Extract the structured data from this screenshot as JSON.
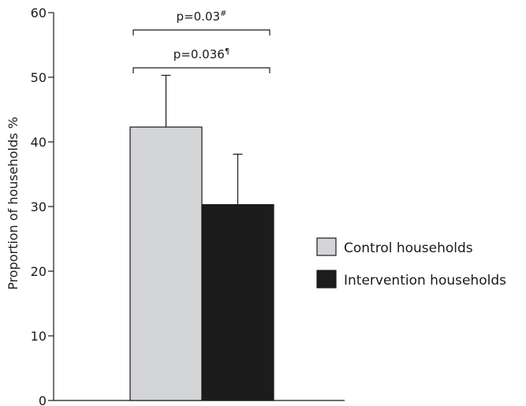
{
  "chart_data": {
    "type": "bar",
    "title": "",
    "xlabel": "",
    "ylabel": "Proportion of households %",
    "ylim": [
      0,
      60
    ],
    "yticks": [
      0,
      10,
      20,
      30,
      40,
      50,
      60
    ],
    "grid": false,
    "legend_position": "right",
    "series": [
      {
        "name": "Control households",
        "value": 42.3,
        "error_upper": 50.3,
        "color": "#d4d5d7"
      },
      {
        "name": "Intervention households",
        "value": 30.3,
        "error_upper": 38.1,
        "color": "#1c1c1c"
      }
    ],
    "annotations": [
      {
        "text": "p=0.03",
        "superscript": "#"
      },
      {
        "text": "p=0.036",
        "superscript": "¶"
      }
    ]
  }
}
